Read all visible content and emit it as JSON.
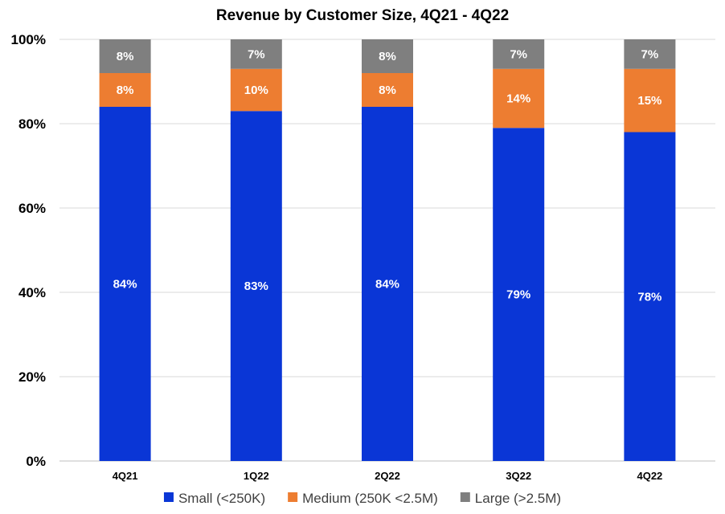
{
  "chart_data": {
    "type": "bar",
    "stacked": true,
    "title": "Revenue by Customer Size, 4Q21 - 4Q22",
    "categories": [
      "4Q21",
      "1Q22",
      "2Q22",
      "3Q22",
      "4Q22"
    ],
    "ylim": [
      0,
      100
    ],
    "yticks": [
      "0%",
      "20%",
      "40%",
      "60%",
      "80%",
      "100%"
    ],
    "ytick_values": [
      0,
      20,
      40,
      60,
      80,
      100
    ],
    "grid": true,
    "legend_position": "bottom",
    "series": [
      {
        "name": "Small (<250K)",
        "color": "#0A36D6",
        "values": [
          84,
          83,
          84,
          79,
          78
        ],
        "labels": [
          "84%",
          "83%",
          "84%",
          "79%",
          "78%"
        ]
      },
      {
        "name": "Medium (250K <2.5M)",
        "color": "#ED7D31",
        "values": [
          8,
          10,
          8,
          14,
          15
        ],
        "labels": [
          "8%",
          "10%",
          "8%",
          "14%",
          "15%"
        ]
      },
      {
        "name": "Large (>2.5M)",
        "color": "#7F7F7F",
        "values": [
          8,
          7,
          8,
          7,
          7
        ],
        "labels": [
          "8%",
          "7%",
          "8%",
          "7%",
          "7%"
        ]
      }
    ]
  }
}
